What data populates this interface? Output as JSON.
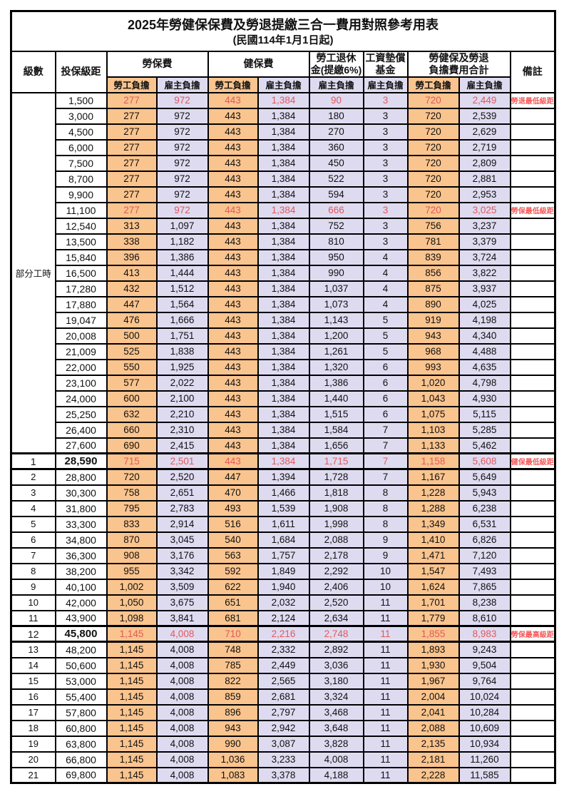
{
  "title": "2025年勞健保保費及勞退提繳三合一費用對照參考用表",
  "subtitle": "(民國114年1月1日起)",
  "colors": {
    "employee_column_bg": "#FAC48E",
    "employer_column_bg": "#DEDBF1",
    "highlight_value_text": "#E4585A",
    "remark_text": "#F4595A",
    "border": "#000000"
  },
  "header": {
    "level": "級數",
    "salary": "投保級距",
    "labor_insurance": "勞保費",
    "health_insurance": "健保費",
    "pension_line1": "勞工退休",
    "pension_line2": "金(提繳6%)",
    "wage_fund_line1": "工資墊償",
    "wage_fund_line2": "基金",
    "total_line1": "勞健保及勞退",
    "total_line2": "負擔費用合計",
    "remark": "備註",
    "employee": "勞工負擔",
    "employer": "雇主負擔"
  },
  "part_time_label": "部分工時",
  "part_time_span": 23,
  "rows": [
    {
      "level": "",
      "salary": "1,500",
      "labor_emp": "277",
      "labor_er": "972",
      "health_emp": "443",
      "health_er": "1,384",
      "pension": "90",
      "fund": "3",
      "total_emp": "720",
      "total_er": "2,449",
      "remark": "勞退最低級距",
      "highlight": true,
      "bold": false
    },
    {
      "level": "",
      "salary": "3,000",
      "labor_emp": "277",
      "labor_er": "972",
      "health_emp": "443",
      "health_er": "1,384",
      "pension": "180",
      "fund": "3",
      "total_emp": "720",
      "total_er": "2,539",
      "remark": "",
      "highlight": false,
      "bold": false
    },
    {
      "level": "",
      "salary": "4,500",
      "labor_emp": "277",
      "labor_er": "972",
      "health_emp": "443",
      "health_er": "1,384",
      "pension": "270",
      "fund": "3",
      "total_emp": "720",
      "total_er": "2,629",
      "remark": "",
      "highlight": false,
      "bold": false
    },
    {
      "level": "",
      "salary": "6,000",
      "labor_emp": "277",
      "labor_er": "972",
      "health_emp": "443",
      "health_er": "1,384",
      "pension": "360",
      "fund": "3",
      "total_emp": "720",
      "total_er": "2,719",
      "remark": "",
      "highlight": false,
      "bold": false
    },
    {
      "level": "",
      "salary": "7,500",
      "labor_emp": "277",
      "labor_er": "972",
      "health_emp": "443",
      "health_er": "1,384",
      "pension": "450",
      "fund": "3",
      "total_emp": "720",
      "total_er": "2,809",
      "remark": "",
      "highlight": false,
      "bold": false
    },
    {
      "level": "",
      "salary": "8,700",
      "labor_emp": "277",
      "labor_er": "972",
      "health_emp": "443",
      "health_er": "1,384",
      "pension": "522",
      "fund": "3",
      "total_emp": "720",
      "total_er": "2,881",
      "remark": "",
      "highlight": false,
      "bold": false
    },
    {
      "level": "",
      "salary": "9,900",
      "labor_emp": "277",
      "labor_er": "972",
      "health_emp": "443",
      "health_er": "1,384",
      "pension": "594",
      "fund": "3",
      "total_emp": "720",
      "total_er": "2,953",
      "remark": "",
      "highlight": false,
      "bold": false
    },
    {
      "level": "",
      "salary": "11,100",
      "labor_emp": "277",
      "labor_er": "972",
      "health_emp": "443",
      "health_er": "1,384",
      "pension": "666",
      "fund": "3",
      "total_emp": "720",
      "total_er": "3,025",
      "remark": "勞保最低級距",
      "highlight": true,
      "bold": false
    },
    {
      "level": "",
      "salary": "12,540",
      "labor_emp": "313",
      "labor_er": "1,097",
      "health_emp": "443",
      "health_er": "1,384",
      "pension": "752",
      "fund": "3",
      "total_emp": "756",
      "total_er": "3,237",
      "remark": "",
      "highlight": false,
      "bold": false
    },
    {
      "level": "",
      "salary": "13,500",
      "labor_emp": "338",
      "labor_er": "1,182",
      "health_emp": "443",
      "health_er": "1,384",
      "pension": "810",
      "fund": "3",
      "total_emp": "781",
      "total_er": "3,379",
      "remark": "",
      "highlight": false,
      "bold": false
    },
    {
      "level": "",
      "salary": "15,840",
      "labor_emp": "396",
      "labor_er": "1,386",
      "health_emp": "443",
      "health_er": "1,384",
      "pension": "950",
      "fund": "4",
      "total_emp": "839",
      "total_er": "3,724",
      "remark": "",
      "highlight": false,
      "bold": false
    },
    {
      "level": "",
      "salary": "16,500",
      "labor_emp": "413",
      "labor_er": "1,444",
      "health_emp": "443",
      "health_er": "1,384",
      "pension": "990",
      "fund": "4",
      "total_emp": "856",
      "total_er": "3,822",
      "remark": "",
      "highlight": false,
      "bold": false
    },
    {
      "level": "",
      "salary": "17,280",
      "labor_emp": "432",
      "labor_er": "1,512",
      "health_emp": "443",
      "health_er": "1,384",
      "pension": "1,037",
      "fund": "4",
      "total_emp": "875",
      "total_er": "3,937",
      "remark": "",
      "highlight": false,
      "bold": false
    },
    {
      "level": "",
      "salary": "17,880",
      "labor_emp": "447",
      "labor_er": "1,564",
      "health_emp": "443",
      "health_er": "1,384",
      "pension": "1,073",
      "fund": "4",
      "total_emp": "890",
      "total_er": "4,025",
      "remark": "",
      "highlight": false,
      "bold": false
    },
    {
      "level": "",
      "salary": "19,047",
      "labor_emp": "476",
      "labor_er": "1,666",
      "health_emp": "443",
      "health_er": "1,384",
      "pension": "1,143",
      "fund": "5",
      "total_emp": "919",
      "total_er": "4,198",
      "remark": "",
      "highlight": false,
      "bold": false
    },
    {
      "level": "",
      "salary": "20,008",
      "labor_emp": "500",
      "labor_er": "1,751",
      "health_emp": "443",
      "health_er": "1,384",
      "pension": "1,200",
      "fund": "5",
      "total_emp": "943",
      "total_er": "4,340",
      "remark": "",
      "highlight": false,
      "bold": false
    },
    {
      "level": "",
      "salary": "21,009",
      "labor_emp": "525",
      "labor_er": "1,838",
      "health_emp": "443",
      "health_er": "1,384",
      "pension": "1,261",
      "fund": "5",
      "total_emp": "968",
      "total_er": "4,488",
      "remark": "",
      "highlight": false,
      "bold": false
    },
    {
      "level": "",
      "salary": "22,000",
      "labor_emp": "550",
      "labor_er": "1,925",
      "health_emp": "443",
      "health_er": "1,384",
      "pension": "1,320",
      "fund": "6",
      "total_emp": "993",
      "total_er": "4,635",
      "remark": "",
      "highlight": false,
      "bold": false
    },
    {
      "level": "",
      "salary": "23,100",
      "labor_emp": "577",
      "labor_er": "2,022",
      "health_emp": "443",
      "health_er": "1,384",
      "pension": "1,386",
      "fund": "6",
      "total_emp": "1,020",
      "total_er": "4,798",
      "remark": "",
      "highlight": false,
      "bold": false
    },
    {
      "level": "",
      "salary": "24,000",
      "labor_emp": "600",
      "labor_er": "2,100",
      "health_emp": "443",
      "health_er": "1,384",
      "pension": "1,440",
      "fund": "6",
      "total_emp": "1,043",
      "total_er": "4,930",
      "remark": "",
      "highlight": false,
      "bold": false
    },
    {
      "level": "",
      "salary": "25,250",
      "labor_emp": "632",
      "labor_er": "2,210",
      "health_emp": "443",
      "health_er": "1,384",
      "pension": "1,515",
      "fund": "6",
      "total_emp": "1,075",
      "total_er": "5,115",
      "remark": "",
      "highlight": false,
      "bold": false
    },
    {
      "level": "",
      "salary": "26,400",
      "labor_emp": "660",
      "labor_er": "2,310",
      "health_emp": "443",
      "health_er": "1,384",
      "pension": "1,584",
      "fund": "7",
      "total_emp": "1,103",
      "total_er": "5,285",
      "remark": "",
      "highlight": false,
      "bold": false
    },
    {
      "level": "",
      "salary": "27,600",
      "labor_emp": "690",
      "labor_er": "2,415",
      "health_emp": "443",
      "health_er": "1,384",
      "pension": "1,656",
      "fund": "7",
      "total_emp": "1,133",
      "total_er": "5,462",
      "remark": "",
      "highlight": false,
      "bold": false
    },
    {
      "level": "1",
      "salary": "28,590",
      "labor_emp": "715",
      "labor_er": "2,501",
      "health_emp": "443",
      "health_er": "1,384",
      "pension": "1,715",
      "fund": "7",
      "total_emp": "1,158",
      "total_er": "5,608",
      "remark": "健保最低級距",
      "highlight": true,
      "bold": true
    },
    {
      "level": "2",
      "salary": "28,800",
      "labor_emp": "720",
      "labor_er": "2,520",
      "health_emp": "447",
      "health_er": "1,394",
      "pension": "1,728",
      "fund": "7",
      "total_emp": "1,167",
      "total_er": "5,649",
      "remark": "",
      "highlight": false,
      "bold": false
    },
    {
      "level": "3",
      "salary": "30,300",
      "labor_emp": "758",
      "labor_er": "2,651",
      "health_emp": "470",
      "health_er": "1,466",
      "pension": "1,818",
      "fund": "8",
      "total_emp": "1,228",
      "total_er": "5,943",
      "remark": "",
      "highlight": false,
      "bold": false
    },
    {
      "level": "4",
      "salary": "31,800",
      "labor_emp": "795",
      "labor_er": "2,783",
      "health_emp": "493",
      "health_er": "1,539",
      "pension": "1,908",
      "fund": "8",
      "total_emp": "1,288",
      "total_er": "6,238",
      "remark": "",
      "highlight": false,
      "bold": false
    },
    {
      "level": "5",
      "salary": "33,300",
      "labor_emp": "833",
      "labor_er": "2,914",
      "health_emp": "516",
      "health_er": "1,611",
      "pension": "1,998",
      "fund": "8",
      "total_emp": "1,349",
      "total_er": "6,531",
      "remark": "",
      "highlight": false,
      "bold": false
    },
    {
      "level": "6",
      "salary": "34,800",
      "labor_emp": "870",
      "labor_er": "3,045",
      "health_emp": "540",
      "health_er": "1,684",
      "pension": "2,088",
      "fund": "9",
      "total_emp": "1,410",
      "total_er": "6,826",
      "remark": "",
      "highlight": false,
      "bold": false
    },
    {
      "level": "7",
      "salary": "36,300",
      "labor_emp": "908",
      "labor_er": "3,176",
      "health_emp": "563",
      "health_er": "1,757",
      "pension": "2,178",
      "fund": "9",
      "total_emp": "1,471",
      "total_er": "7,120",
      "remark": "",
      "highlight": false,
      "bold": false
    },
    {
      "level": "8",
      "salary": "38,200",
      "labor_emp": "955",
      "labor_er": "3,342",
      "health_emp": "592",
      "health_er": "1,849",
      "pension": "2,292",
      "fund": "10",
      "total_emp": "1,547",
      "total_er": "7,493",
      "remark": "",
      "highlight": false,
      "bold": false
    },
    {
      "level": "9",
      "salary": "40,100",
      "labor_emp": "1,002",
      "labor_er": "3,509",
      "health_emp": "622",
      "health_er": "1,940",
      "pension": "2,406",
      "fund": "10",
      "total_emp": "1,624",
      "total_er": "7,865",
      "remark": "",
      "highlight": false,
      "bold": false
    },
    {
      "level": "10",
      "salary": "42,000",
      "labor_emp": "1,050",
      "labor_er": "3,675",
      "health_emp": "651",
      "health_er": "2,032",
      "pension": "2,520",
      "fund": "11",
      "total_emp": "1,701",
      "total_er": "8,238",
      "remark": "",
      "highlight": false,
      "bold": false
    },
    {
      "level": "11",
      "salary": "43,900",
      "labor_emp": "1,098",
      "labor_er": "3,841",
      "health_emp": "681",
      "health_er": "2,124",
      "pension": "2,634",
      "fund": "11",
      "total_emp": "1,779",
      "total_er": "8,610",
      "remark": "",
      "highlight": false,
      "bold": false
    },
    {
      "level": "12",
      "salary": "45,800",
      "labor_emp": "1,145",
      "labor_er": "4,008",
      "health_emp": "710",
      "health_er": "2,216",
      "pension": "2,748",
      "fund": "11",
      "total_emp": "1,855",
      "total_er": "8,983",
      "remark": "勞保最高級距",
      "highlight": true,
      "bold": true
    },
    {
      "level": "13",
      "salary": "48,200",
      "labor_emp": "1,145",
      "labor_er": "4,008",
      "health_emp": "748",
      "health_er": "2,332",
      "pension": "2,892",
      "fund": "11",
      "total_emp": "1,893",
      "total_er": "9,243",
      "remark": "",
      "highlight": false,
      "bold": false
    },
    {
      "level": "14",
      "salary": "50,600",
      "labor_emp": "1,145",
      "labor_er": "4,008",
      "health_emp": "785",
      "health_er": "2,449",
      "pension": "3,036",
      "fund": "11",
      "total_emp": "1,930",
      "total_er": "9,504",
      "remark": "",
      "highlight": false,
      "bold": false
    },
    {
      "level": "15",
      "salary": "53,000",
      "labor_emp": "1,145",
      "labor_er": "4,008",
      "health_emp": "822",
      "health_er": "2,565",
      "pension": "3,180",
      "fund": "11",
      "total_emp": "1,967",
      "total_er": "9,764",
      "remark": "",
      "highlight": false,
      "bold": false
    },
    {
      "level": "16",
      "salary": "55,400",
      "labor_emp": "1,145",
      "labor_er": "4,008",
      "health_emp": "859",
      "health_er": "2,681",
      "pension": "3,324",
      "fund": "11",
      "total_emp": "2,004",
      "total_er": "10,024",
      "remark": "",
      "highlight": false,
      "bold": false
    },
    {
      "level": "17",
      "salary": "57,800",
      "labor_emp": "1,145",
      "labor_er": "4,008",
      "health_emp": "896",
      "health_er": "2,797",
      "pension": "3,468",
      "fund": "11",
      "total_emp": "2,041",
      "total_er": "10,284",
      "remark": "",
      "highlight": false,
      "bold": false
    },
    {
      "level": "18",
      "salary": "60,800",
      "labor_emp": "1,145",
      "labor_er": "4,008",
      "health_emp": "943",
      "health_er": "2,942",
      "pension": "3,648",
      "fund": "11",
      "total_emp": "2,088",
      "total_er": "10,609",
      "remark": "",
      "highlight": false,
      "bold": false
    },
    {
      "level": "19",
      "salary": "63,800",
      "labor_emp": "1,145",
      "labor_er": "4,008",
      "health_emp": "990",
      "health_er": "3,087",
      "pension": "3,828",
      "fund": "11",
      "total_emp": "2,135",
      "total_er": "10,934",
      "remark": "",
      "highlight": false,
      "bold": false
    },
    {
      "level": "20",
      "salary": "66,800",
      "labor_emp": "1,145",
      "labor_er": "4,008",
      "health_emp": "1,036",
      "health_er": "3,233",
      "pension": "4,008",
      "fund": "11",
      "total_emp": "2,181",
      "total_er": "11,260",
      "remark": "",
      "highlight": false,
      "bold": false
    },
    {
      "level": "21",
      "salary": "69,800",
      "labor_emp": "1,145",
      "labor_er": "4,008",
      "health_emp": "1,083",
      "health_er": "3,378",
      "pension": "4,188",
      "fund": "11",
      "total_emp": "2,228",
      "total_er": "11,585",
      "remark": "",
      "highlight": false,
      "bold": false
    }
  ]
}
